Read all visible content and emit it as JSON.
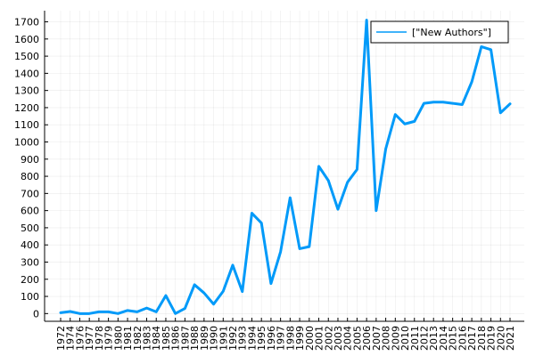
{
  "chart_data": {
    "type": "line",
    "title": "",
    "xlabel": "",
    "ylabel": "",
    "x": [
      1972,
      1974,
      1976,
      1977,
      1978,
      1979,
      1980,
      1981,
      1982,
      1983,
      1984,
      1985,
      1986,
      1987,
      1988,
      1989,
      1990,
      1991,
      1992,
      1993,
      1994,
      1995,
      1996,
      1997,
      1998,
      1999,
      2000,
      2001,
      2002,
      2003,
      2004,
      2005,
      2006,
      2007,
      2008,
      2009,
      2010,
      2011,
      2012,
      2013,
      2014,
      2015,
      2016,
      2017,
      2018,
      2019,
      2020,
      2021
    ],
    "xticks": [
      "1972",
      "1974",
      "1976",
      "1977",
      "1978",
      "1979",
      "1980",
      "1981",
      "1982",
      "1983",
      "1984",
      "1985",
      "1986",
      "1987",
      "1988",
      "1989",
      "1990",
      "1991",
      "1992",
      "1993",
      "1994",
      "1995",
      "1996",
      "1997",
      "1998",
      "1999",
      "2000",
      "2001",
      "2002",
      "2003",
      "2004",
      "2005",
      "2006",
      "2007",
      "2008",
      "2009",
      "2010",
      "2011",
      "2012",
      "2013",
      "2014",
      "2015",
      "2016",
      "2017",
      "2018",
      "2019",
      "2020",
      "2021"
    ],
    "series": [
      {
        "name": "[\"New Authors\"]",
        "color": "#009af9",
        "values": [
          5,
          12,
          0,
          0,
          10,
          10,
          0,
          18,
          10,
          32,
          10,
          105,
          0,
          30,
          168,
          120,
          55,
          130,
          282,
          128,
          585,
          528,
          175,
          360,
          675,
          378,
          390,
          858,
          775,
          608,
          765,
          840,
          1710,
          600,
          960,
          1160,
          1105,
          1120,
          1225,
          1232,
          1232,
          1225,
          1218,
          1350,
          1555,
          1538,
          1170,
          1222
        ]
      }
    ],
    "ylim": [
      -45,
      1765
    ],
    "yticks": [
      0,
      100,
      200,
      300,
      400,
      500,
      600,
      700,
      800,
      900,
      1000,
      1100,
      1200,
      1300,
      1400,
      1500,
      1600,
      1700
    ],
    "grid": true,
    "legend": "top-right"
  }
}
